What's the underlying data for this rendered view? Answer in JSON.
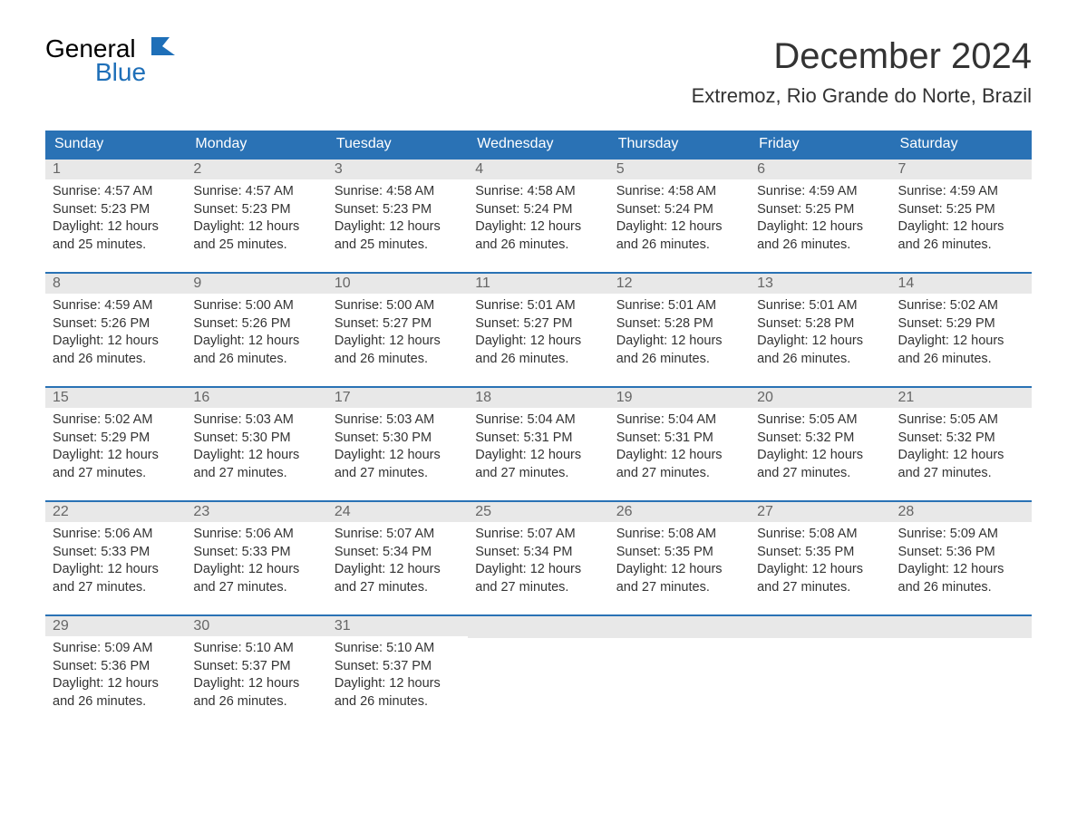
{
  "logo": {
    "text_top": "General",
    "text_bottom": "Blue",
    "brand_color": "#1e6fb8"
  },
  "title": "December 2024",
  "location": "Extremoz, Rio Grande do Norte, Brazil",
  "colors": {
    "header_bg": "#2a72b5",
    "header_text": "#ffffff",
    "day_num_bg": "#e8e8e8",
    "day_num_text": "#666666",
    "body_text": "#333333",
    "border": "#2a72b5"
  },
  "day_names": [
    "Sunday",
    "Monday",
    "Tuesday",
    "Wednesday",
    "Thursday",
    "Friday",
    "Saturday"
  ],
  "weeks": [
    [
      {
        "n": "1",
        "sunrise": "Sunrise: 4:57 AM",
        "sunset": "Sunset: 5:23 PM",
        "d1": "Daylight: 12 hours",
        "d2": "and 25 minutes."
      },
      {
        "n": "2",
        "sunrise": "Sunrise: 4:57 AM",
        "sunset": "Sunset: 5:23 PM",
        "d1": "Daylight: 12 hours",
        "d2": "and 25 minutes."
      },
      {
        "n": "3",
        "sunrise": "Sunrise: 4:58 AM",
        "sunset": "Sunset: 5:23 PM",
        "d1": "Daylight: 12 hours",
        "d2": "and 25 minutes."
      },
      {
        "n": "4",
        "sunrise": "Sunrise: 4:58 AM",
        "sunset": "Sunset: 5:24 PM",
        "d1": "Daylight: 12 hours",
        "d2": "and 26 minutes."
      },
      {
        "n": "5",
        "sunrise": "Sunrise: 4:58 AM",
        "sunset": "Sunset: 5:24 PM",
        "d1": "Daylight: 12 hours",
        "d2": "and 26 minutes."
      },
      {
        "n": "6",
        "sunrise": "Sunrise: 4:59 AM",
        "sunset": "Sunset: 5:25 PM",
        "d1": "Daylight: 12 hours",
        "d2": "and 26 minutes."
      },
      {
        "n": "7",
        "sunrise": "Sunrise: 4:59 AM",
        "sunset": "Sunset: 5:25 PM",
        "d1": "Daylight: 12 hours",
        "d2": "and 26 minutes."
      }
    ],
    [
      {
        "n": "8",
        "sunrise": "Sunrise: 4:59 AM",
        "sunset": "Sunset: 5:26 PM",
        "d1": "Daylight: 12 hours",
        "d2": "and 26 minutes."
      },
      {
        "n": "9",
        "sunrise": "Sunrise: 5:00 AM",
        "sunset": "Sunset: 5:26 PM",
        "d1": "Daylight: 12 hours",
        "d2": "and 26 minutes."
      },
      {
        "n": "10",
        "sunrise": "Sunrise: 5:00 AM",
        "sunset": "Sunset: 5:27 PM",
        "d1": "Daylight: 12 hours",
        "d2": "and 26 minutes."
      },
      {
        "n": "11",
        "sunrise": "Sunrise: 5:01 AM",
        "sunset": "Sunset: 5:27 PM",
        "d1": "Daylight: 12 hours",
        "d2": "and 26 minutes."
      },
      {
        "n": "12",
        "sunrise": "Sunrise: 5:01 AM",
        "sunset": "Sunset: 5:28 PM",
        "d1": "Daylight: 12 hours",
        "d2": "and 26 minutes."
      },
      {
        "n": "13",
        "sunrise": "Sunrise: 5:01 AM",
        "sunset": "Sunset: 5:28 PM",
        "d1": "Daylight: 12 hours",
        "d2": "and 26 minutes."
      },
      {
        "n": "14",
        "sunrise": "Sunrise: 5:02 AM",
        "sunset": "Sunset: 5:29 PM",
        "d1": "Daylight: 12 hours",
        "d2": "and 26 minutes."
      }
    ],
    [
      {
        "n": "15",
        "sunrise": "Sunrise: 5:02 AM",
        "sunset": "Sunset: 5:29 PM",
        "d1": "Daylight: 12 hours",
        "d2": "and 27 minutes."
      },
      {
        "n": "16",
        "sunrise": "Sunrise: 5:03 AM",
        "sunset": "Sunset: 5:30 PM",
        "d1": "Daylight: 12 hours",
        "d2": "and 27 minutes."
      },
      {
        "n": "17",
        "sunrise": "Sunrise: 5:03 AM",
        "sunset": "Sunset: 5:30 PM",
        "d1": "Daylight: 12 hours",
        "d2": "and 27 minutes."
      },
      {
        "n": "18",
        "sunrise": "Sunrise: 5:04 AM",
        "sunset": "Sunset: 5:31 PM",
        "d1": "Daylight: 12 hours",
        "d2": "and 27 minutes."
      },
      {
        "n": "19",
        "sunrise": "Sunrise: 5:04 AM",
        "sunset": "Sunset: 5:31 PM",
        "d1": "Daylight: 12 hours",
        "d2": "and 27 minutes."
      },
      {
        "n": "20",
        "sunrise": "Sunrise: 5:05 AM",
        "sunset": "Sunset: 5:32 PM",
        "d1": "Daylight: 12 hours",
        "d2": "and 27 minutes."
      },
      {
        "n": "21",
        "sunrise": "Sunrise: 5:05 AM",
        "sunset": "Sunset: 5:32 PM",
        "d1": "Daylight: 12 hours",
        "d2": "and 27 minutes."
      }
    ],
    [
      {
        "n": "22",
        "sunrise": "Sunrise: 5:06 AM",
        "sunset": "Sunset: 5:33 PM",
        "d1": "Daylight: 12 hours",
        "d2": "and 27 minutes."
      },
      {
        "n": "23",
        "sunrise": "Sunrise: 5:06 AM",
        "sunset": "Sunset: 5:33 PM",
        "d1": "Daylight: 12 hours",
        "d2": "and 27 minutes."
      },
      {
        "n": "24",
        "sunrise": "Sunrise: 5:07 AM",
        "sunset": "Sunset: 5:34 PM",
        "d1": "Daylight: 12 hours",
        "d2": "and 27 minutes."
      },
      {
        "n": "25",
        "sunrise": "Sunrise: 5:07 AM",
        "sunset": "Sunset: 5:34 PM",
        "d1": "Daylight: 12 hours",
        "d2": "and 27 minutes."
      },
      {
        "n": "26",
        "sunrise": "Sunrise: 5:08 AM",
        "sunset": "Sunset: 5:35 PM",
        "d1": "Daylight: 12 hours",
        "d2": "and 27 minutes."
      },
      {
        "n": "27",
        "sunrise": "Sunrise: 5:08 AM",
        "sunset": "Sunset: 5:35 PM",
        "d1": "Daylight: 12 hours",
        "d2": "and 27 minutes."
      },
      {
        "n": "28",
        "sunrise": "Sunrise: 5:09 AM",
        "sunset": "Sunset: 5:36 PM",
        "d1": "Daylight: 12 hours",
        "d2": "and 26 minutes."
      }
    ],
    [
      {
        "n": "29",
        "sunrise": "Sunrise: 5:09 AM",
        "sunset": "Sunset: 5:36 PM",
        "d1": "Daylight: 12 hours",
        "d2": "and 26 minutes."
      },
      {
        "n": "30",
        "sunrise": "Sunrise: 5:10 AM",
        "sunset": "Sunset: 5:37 PM",
        "d1": "Daylight: 12 hours",
        "d2": "and 26 minutes."
      },
      {
        "n": "31",
        "sunrise": "Sunrise: 5:10 AM",
        "sunset": "Sunset: 5:37 PM",
        "d1": "Daylight: 12 hours",
        "d2": "and 26 minutes."
      },
      {
        "empty": true
      },
      {
        "empty": true
      },
      {
        "empty": true
      },
      {
        "empty": true
      }
    ]
  ]
}
